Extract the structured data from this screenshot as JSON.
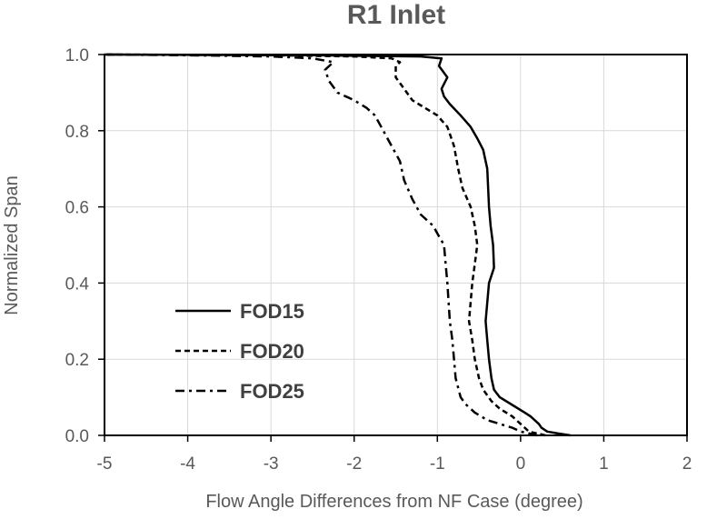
{
  "chart_data": {
    "type": "line",
    "title": "R1 Inlet",
    "xlabel": "Flow  Angle  Differences from NF Case (degree)",
    "ylabel": "Normalized Span",
    "xlim": [
      -5,
      2
    ],
    "ylim": [
      0,
      1.0
    ],
    "x_ticks": [
      -5,
      -4,
      -3,
      -2,
      -1,
      0,
      1,
      2
    ],
    "x_tick_labels": [
      "-5",
      "-4",
      "-3",
      "-2",
      "-1",
      "0",
      "1",
      "2"
    ],
    "y_ticks": [
      0,
      0.2,
      0.4,
      0.6,
      0.8,
      1.0
    ],
    "y_tick_labels": [
      "0.0",
      "0.2",
      "0.4",
      "0.6",
      "0.8",
      "1.0"
    ],
    "grid": true,
    "legend_position": "bottom-left",
    "series": [
      {
        "name": "FOD15",
        "line_style": "solid",
        "color": "#000000",
        "points": [
          [
            0.6,
            0.0
          ],
          [
            0.45,
            0.005
          ],
          [
            0.32,
            0.01
          ],
          [
            0.25,
            0.02
          ],
          [
            0.22,
            0.03
          ],
          [
            0.12,
            0.05
          ],
          [
            0.05,
            0.06
          ],
          [
            -0.1,
            0.08
          ],
          [
            -0.25,
            0.1
          ],
          [
            -0.32,
            0.12
          ],
          [
            -0.35,
            0.15
          ],
          [
            -0.38,
            0.2
          ],
          [
            -0.4,
            0.25
          ],
          [
            -0.42,
            0.3
          ],
          [
            -0.38,
            0.4
          ],
          [
            -0.32,
            0.44
          ],
          [
            -0.33,
            0.5
          ],
          [
            -0.36,
            0.55
          ],
          [
            -0.38,
            0.6
          ],
          [
            -0.4,
            0.7
          ],
          [
            -0.45,
            0.75
          ],
          [
            -0.52,
            0.78
          ],
          [
            -0.6,
            0.81
          ],
          [
            -0.72,
            0.84
          ],
          [
            -0.85,
            0.87
          ],
          [
            -0.92,
            0.89
          ],
          [
            -0.95,
            0.91
          ],
          [
            -0.88,
            0.94
          ],
          [
            -0.98,
            0.97
          ],
          [
            -0.95,
            0.99
          ],
          [
            -1.2,
            0.995
          ],
          [
            -2.5,
            0.998
          ],
          [
            -5.0,
            1.0
          ]
        ]
      },
      {
        "name": "FOD20",
        "line_style": "dashed",
        "color": "#000000",
        "points": [
          [
            0.3,
            0.0
          ],
          [
            0.2,
            0.005
          ],
          [
            0.1,
            0.01
          ],
          [
            0.05,
            0.02
          ],
          [
            0.0,
            0.03
          ],
          [
            -0.1,
            0.05
          ],
          [
            -0.25,
            0.07
          ],
          [
            -0.35,
            0.09
          ],
          [
            -0.45,
            0.12
          ],
          [
            -0.5,
            0.15
          ],
          [
            -0.55,
            0.2
          ],
          [
            -0.58,
            0.25
          ],
          [
            -0.62,
            0.3
          ],
          [
            -0.6,
            0.35
          ],
          [
            -0.58,
            0.4
          ],
          [
            -0.55,
            0.45
          ],
          [
            -0.52,
            0.5
          ],
          [
            -0.55,
            0.55
          ],
          [
            -0.6,
            0.6
          ],
          [
            -0.7,
            0.65
          ],
          [
            -0.75,
            0.7
          ],
          [
            -0.8,
            0.76
          ],
          [
            -0.88,
            0.81
          ],
          [
            -1.0,
            0.84
          ],
          [
            -1.15,
            0.86
          ],
          [
            -1.3,
            0.88
          ],
          [
            -1.4,
            0.91
          ],
          [
            -1.5,
            0.94
          ],
          [
            -1.5,
            0.97
          ],
          [
            -1.45,
            0.98
          ],
          [
            -1.55,
            0.99
          ],
          [
            -2.0,
            0.995
          ],
          [
            -3.0,
            0.998
          ],
          [
            -5.0,
            1.0
          ]
        ]
      },
      {
        "name": "FOD25",
        "line_style": "dashdot",
        "color": "#000000",
        "points": [
          [
            0.2,
            0.0
          ],
          [
            0.1,
            0.005
          ],
          [
            0.0,
            0.01
          ],
          [
            -0.1,
            0.02
          ],
          [
            -0.25,
            0.03
          ],
          [
            -0.4,
            0.04
          ],
          [
            -0.55,
            0.06
          ],
          [
            -0.65,
            0.08
          ],
          [
            -0.72,
            0.1
          ],
          [
            -0.78,
            0.15
          ],
          [
            -0.8,
            0.2
          ],
          [
            -0.82,
            0.25
          ],
          [
            -0.85,
            0.3
          ],
          [
            -0.88,
            0.4
          ],
          [
            -0.9,
            0.45
          ],
          [
            -0.92,
            0.5
          ],
          [
            -1.0,
            0.53
          ],
          [
            -1.05,
            0.55
          ],
          [
            -1.2,
            0.58
          ],
          [
            -1.3,
            0.62
          ],
          [
            -1.4,
            0.67
          ],
          [
            -1.45,
            0.72
          ],
          [
            -1.55,
            0.76
          ],
          [
            -1.65,
            0.8
          ],
          [
            -1.75,
            0.84
          ],
          [
            -1.85,
            0.86
          ],
          [
            -2.0,
            0.88
          ],
          [
            -2.2,
            0.9
          ],
          [
            -2.3,
            0.93
          ],
          [
            -2.35,
            0.96
          ],
          [
            -2.25,
            0.98
          ],
          [
            -2.5,
            0.99
          ],
          [
            -3.0,
            0.995
          ],
          [
            -4.0,
            0.998
          ],
          [
            -5.0,
            1.0
          ]
        ]
      }
    ]
  }
}
